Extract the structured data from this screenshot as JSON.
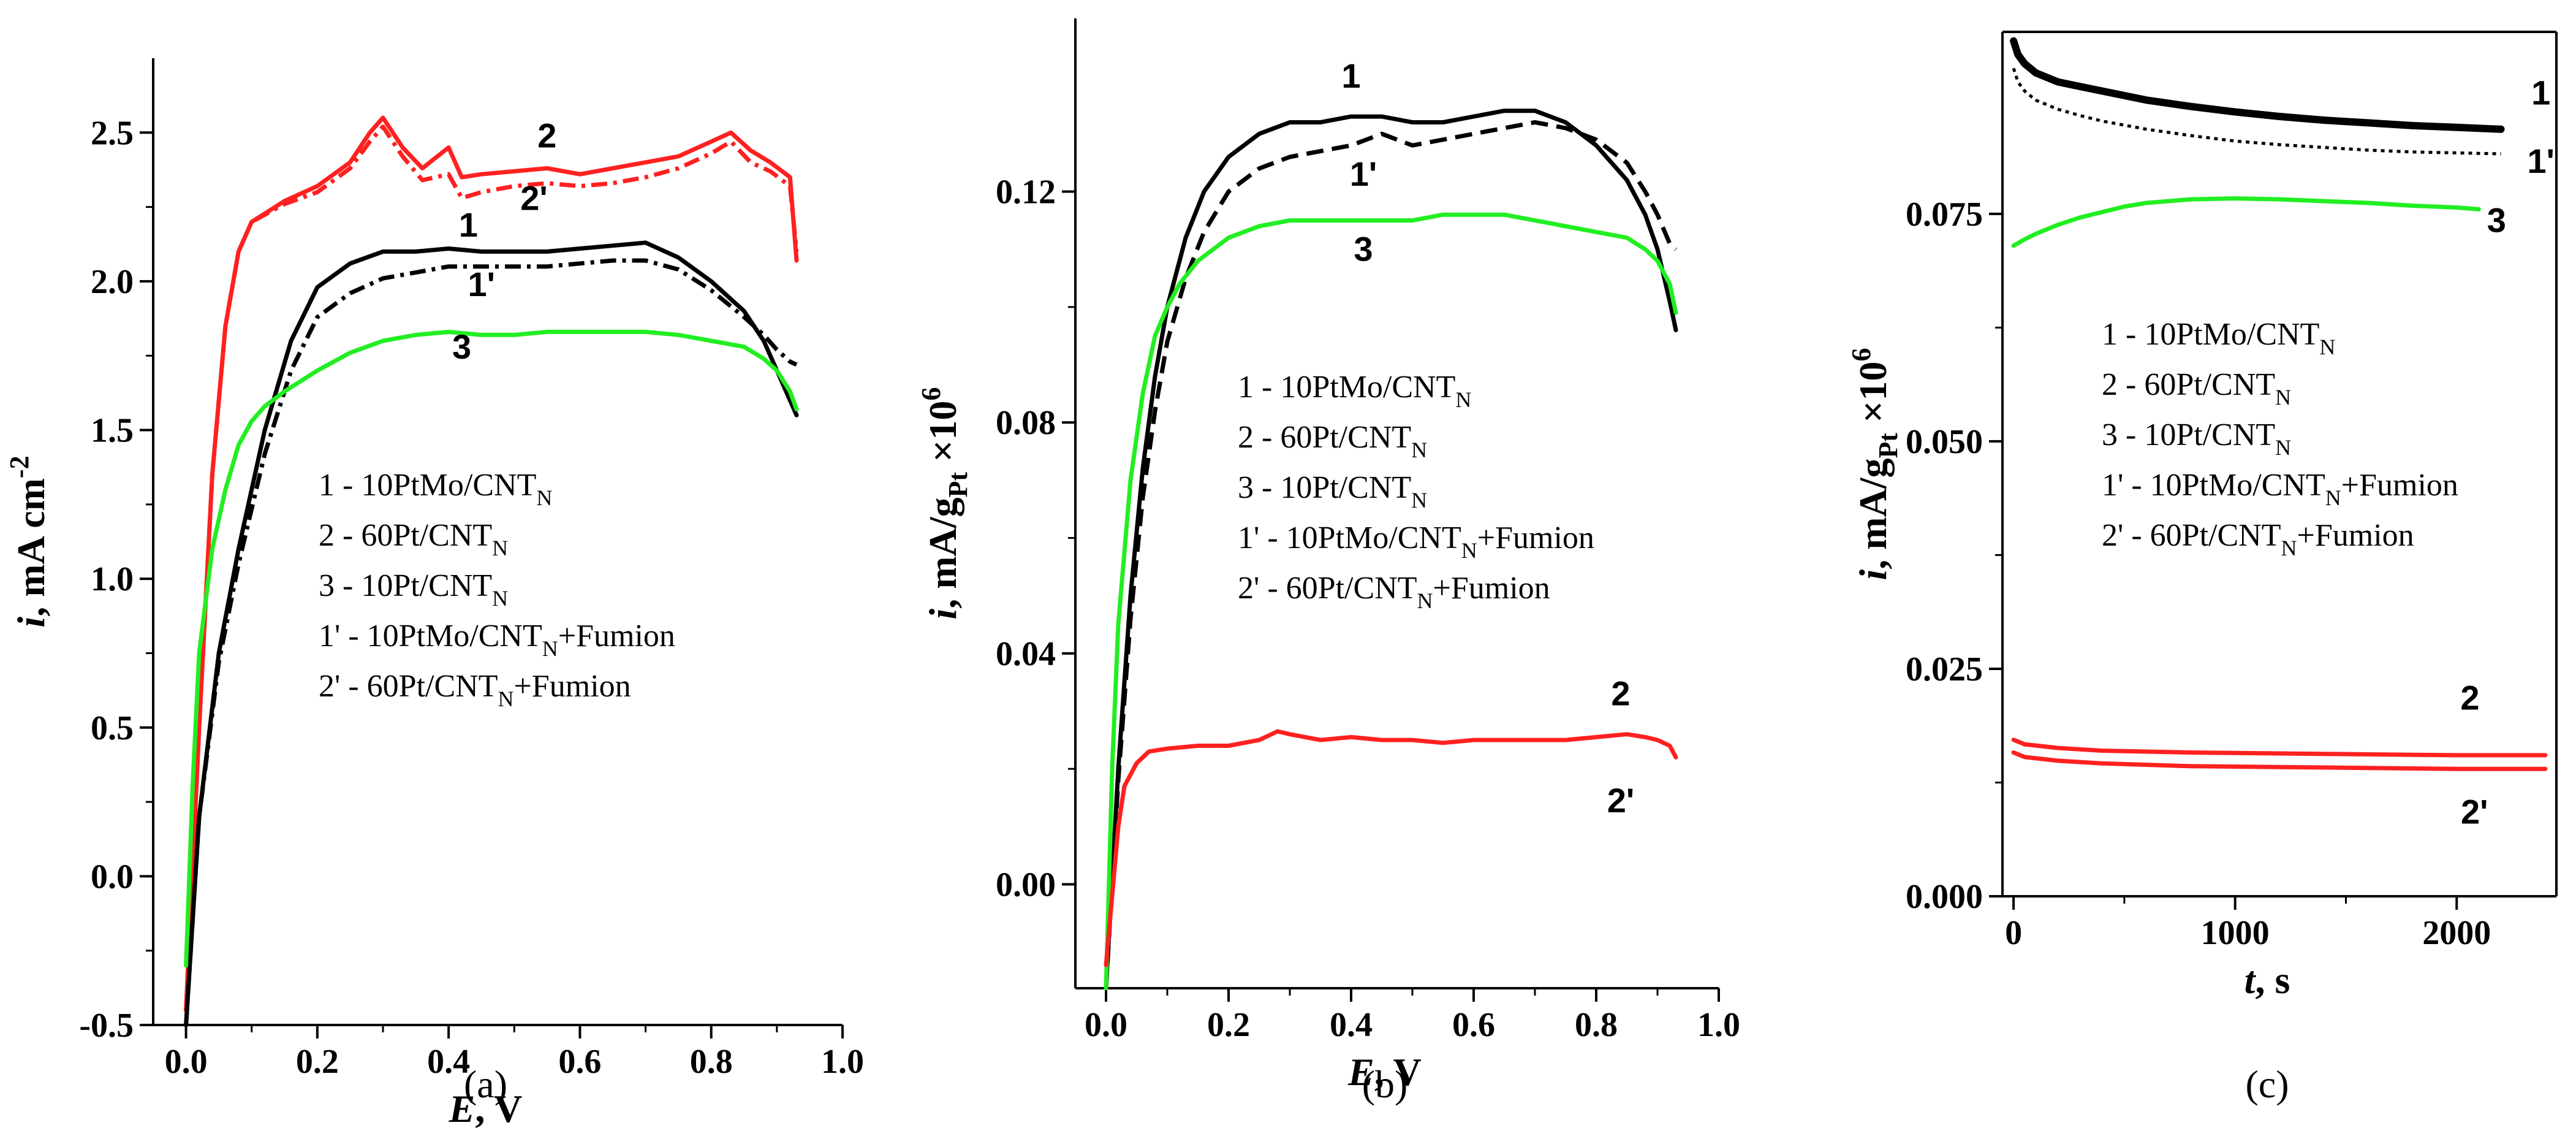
{
  "colors": {
    "series_1": "#000000",
    "series_2": "#ff2020",
    "series_3": "#22ee22"
  },
  "chart_data": [
    {
      "type": "line",
      "panel_label": "(a)",
      "xlabel_var": "E",
      "xlabel_unit": ", V",
      "ylabel_var": "i",
      "ylabel_unit": ", mA cm",
      "ylabel_sup": "-2",
      "xlim": [
        -0.05,
        1.0
      ],
      "ylim": [
        -0.5,
        2.75
      ],
      "x_ticks": [
        0.0,
        0.2,
        0.4,
        0.6,
        0.8,
        1.0
      ],
      "x_tick_labels": [
        "0.0",
        "0.2",
        "0.4",
        "0.6",
        "0.8",
        "1.0"
      ],
      "y_ticks": [
        -0.5,
        0.0,
        0.5,
        1.0,
        1.5,
        2.0,
        2.5
      ],
      "y_tick_labels": [
        "-0.5",
        "0.0",
        "0.5",
        "1.0",
        "1.5",
        "2.0",
        "2.5"
      ],
      "legend": [
        {
          "n": "1 - 10PtMo/CNT",
          "sub": "N",
          "post": ""
        },
        {
          "n": "2 - 60Pt/CNT",
          "sub": "N",
          "post": ""
        },
        {
          "n": "3 - 10Pt/CNT",
          "sub": "N",
          "post": ""
        },
        {
          "n": "1' - 10PtMo/CNT",
          "sub": "N",
          "post": "+Fumion"
        },
        {
          "n": "2' - 60Pt/CNT",
          "sub": "N",
          "post": "+Fumion"
        }
      ],
      "curve_labels": [
        {
          "text": "2",
          "x": 0.55,
          "y": 2.45
        },
        {
          "text": "2'",
          "x": 0.53,
          "y": 2.24
        },
        {
          "text": "1",
          "x": 0.43,
          "y": 2.15
        },
        {
          "text": "1'",
          "x": 0.45,
          "y": 1.95
        },
        {
          "text": "3",
          "x": 0.42,
          "y": 1.74
        }
      ],
      "series": [
        {
          "name": "2",
          "color": "#ff2020",
          "dash": "solid",
          "x": [
            0.0,
            0.02,
            0.04,
            0.06,
            0.08,
            0.1,
            0.15,
            0.2,
            0.25,
            0.28,
            0.3,
            0.33,
            0.36,
            0.4,
            0.42,
            0.45,
            0.5,
            0.55,
            0.6,
            0.65,
            0.7,
            0.75,
            0.8,
            0.83,
            0.86,
            0.89,
            0.92,
            0.93
          ],
          "y": [
            -0.45,
            0.5,
            1.35,
            1.85,
            2.1,
            2.2,
            2.27,
            2.32,
            2.4,
            2.5,
            2.55,
            2.45,
            2.38,
            2.45,
            2.35,
            2.36,
            2.37,
            2.38,
            2.36,
            2.38,
            2.4,
            2.42,
            2.47,
            2.5,
            2.44,
            2.4,
            2.35,
            2.07
          ]
        },
        {
          "name": "2'",
          "color": "#ff2020",
          "dash": "dashdot",
          "x": [
            0.0,
            0.02,
            0.04,
            0.06,
            0.08,
            0.1,
            0.15,
            0.2,
            0.25,
            0.28,
            0.3,
            0.33,
            0.36,
            0.4,
            0.42,
            0.45,
            0.5,
            0.55,
            0.6,
            0.65,
            0.7,
            0.75,
            0.8,
            0.83,
            0.86,
            0.89,
            0.92,
            0.93
          ],
          "y": [
            -0.45,
            0.5,
            1.35,
            1.85,
            2.1,
            2.2,
            2.26,
            2.3,
            2.38,
            2.47,
            2.52,
            2.42,
            2.34,
            2.36,
            2.28,
            2.3,
            2.32,
            2.33,
            2.32,
            2.33,
            2.35,
            2.38,
            2.43,
            2.47,
            2.4,
            2.37,
            2.32,
            2.1
          ]
        },
        {
          "name": "1",
          "color": "#000000",
          "dash": "solid",
          "x": [
            0.0,
            0.02,
            0.05,
            0.08,
            0.12,
            0.16,
            0.2,
            0.25,
            0.3,
            0.35,
            0.4,
            0.45,
            0.5,
            0.55,
            0.6,
            0.65,
            0.7,
            0.75,
            0.8,
            0.85,
            0.88,
            0.9,
            0.92,
            0.93
          ],
          "y": [
            -0.5,
            0.2,
            0.75,
            1.1,
            1.5,
            1.8,
            1.98,
            2.06,
            2.1,
            2.1,
            2.11,
            2.1,
            2.1,
            2.1,
            2.11,
            2.12,
            2.13,
            2.08,
            2.0,
            1.9,
            1.8,
            1.7,
            1.6,
            1.55
          ]
        },
        {
          "name": "1'",
          "color": "#000000",
          "dash": "dashdot",
          "x": [
            0.0,
            0.02,
            0.05,
            0.08,
            0.12,
            0.16,
            0.2,
            0.25,
            0.3,
            0.35,
            0.4,
            0.45,
            0.5,
            0.55,
            0.6,
            0.65,
            0.7,
            0.75,
            0.8,
            0.85,
            0.88,
            0.9,
            0.92,
            0.93
          ],
          "y": [
            -0.5,
            0.2,
            0.72,
            1.05,
            1.42,
            1.7,
            1.88,
            1.96,
            2.01,
            2.03,
            2.05,
            2.05,
            2.05,
            2.05,
            2.06,
            2.07,
            2.07,
            2.04,
            1.97,
            1.88,
            1.82,
            1.77,
            1.73,
            1.72
          ]
        },
        {
          "name": "3",
          "color": "#22ee22",
          "dash": "solid",
          "x": [
            0.0,
            0.01,
            0.02,
            0.04,
            0.06,
            0.08,
            0.1,
            0.12,
            0.15,
            0.2,
            0.25,
            0.3,
            0.35,
            0.4,
            0.45,
            0.5,
            0.55,
            0.6,
            0.65,
            0.7,
            0.75,
            0.8,
            0.85,
            0.88,
            0.9,
            0.92,
            0.93
          ],
          "y": [
            -0.3,
            0.3,
            0.75,
            1.1,
            1.3,
            1.45,
            1.53,
            1.58,
            1.63,
            1.7,
            1.76,
            1.8,
            1.82,
            1.83,
            1.82,
            1.82,
            1.83,
            1.83,
            1.83,
            1.83,
            1.82,
            1.8,
            1.78,
            1.74,
            1.7,
            1.63,
            1.57
          ]
        }
      ]
    },
    {
      "type": "line",
      "panel_label": "(b)",
      "xlabel_var": "E",
      "xlabel_unit": ", V",
      "ylabel_var": "i",
      "ylabel_unit": ", mA/g",
      "ylabel_sub": "Pt",
      "ylabel_post": " ×10",
      "ylabel_sup": "6",
      "xlim": [
        -0.05,
        1.0
      ],
      "ylim": [
        -0.018,
        0.15
      ],
      "x_ticks": [
        0.0,
        0.2,
        0.4,
        0.6,
        0.8,
        1.0
      ],
      "x_tick_labels": [
        "0.0",
        "0.2",
        "0.4",
        "0.6",
        "0.8",
        "1.0"
      ],
      "y_ticks": [
        0.0,
        0.04,
        0.08,
        0.12
      ],
      "y_tick_labels": [
        "0.00",
        "0.04",
        "0.08",
        "0.12"
      ],
      "legend": [
        {
          "n": "1 - 10PtMo/CNT",
          "sub": "N",
          "post": ""
        },
        {
          "n": "2 - 60Pt/CNT",
          "sub": "N",
          "post": ""
        },
        {
          "n": "3 - 10Pt/CNT",
          "sub": "N",
          "post": ""
        },
        {
          "n": "1' - 10PtMo/CNT",
          "sub": "N",
          "post": "+Fumion"
        },
        {
          "n": "2' - 60Pt/CNT",
          "sub": "N",
          "post": "+Fumion"
        }
      ],
      "curve_labels": [
        {
          "text": "1",
          "x": 0.4,
          "y": 0.138
        },
        {
          "text": "1'",
          "x": 0.42,
          "y": 0.121
        },
        {
          "text": "3",
          "x": 0.42,
          "y": 0.108
        },
        {
          "text": "2",
          "x": 0.84,
          "y": 0.031
        },
        {
          "text": "2'",
          "x": 0.84,
          "y": 0.0125
        }
      ],
      "series": [
        {
          "name": "1",
          "color": "#000000",
          "dash": "solid",
          "x": [
            0.0,
            0.02,
            0.04,
            0.06,
            0.08,
            0.1,
            0.13,
            0.16,
            0.2,
            0.25,
            0.3,
            0.35,
            0.4,
            0.45,
            0.5,
            0.55,
            0.6,
            0.65,
            0.7,
            0.75,
            0.8,
            0.85,
            0.88,
            0.9,
            0.92,
            0.93
          ],
          "y": [
            -0.018,
            0.02,
            0.05,
            0.072,
            0.088,
            0.1,
            0.112,
            0.12,
            0.126,
            0.13,
            0.132,
            0.132,
            0.133,
            0.133,
            0.132,
            0.132,
            0.133,
            0.134,
            0.134,
            0.132,
            0.128,
            0.122,
            0.116,
            0.11,
            0.101,
            0.096
          ]
        },
        {
          "name": "1'",
          "color": "#000000",
          "dash": "dashed",
          "x": [
            0.0,
            0.02,
            0.04,
            0.06,
            0.08,
            0.1,
            0.13,
            0.16,
            0.2,
            0.25,
            0.3,
            0.35,
            0.4,
            0.45,
            0.5,
            0.55,
            0.6,
            0.65,
            0.7,
            0.75,
            0.8,
            0.85,
            0.88,
            0.9,
            0.92,
            0.93
          ],
          "y": [
            -0.018,
            0.018,
            0.046,
            0.067,
            0.082,
            0.094,
            0.105,
            0.113,
            0.12,
            0.124,
            0.126,
            0.127,
            0.128,
            0.13,
            0.128,
            0.129,
            0.13,
            0.131,
            0.132,
            0.131,
            0.129,
            0.125,
            0.12,
            0.116,
            0.111,
            0.11
          ]
        },
        {
          "name": "3",
          "color": "#22ee22",
          "dash": "solid",
          "x": [
            0.0,
            0.01,
            0.02,
            0.04,
            0.06,
            0.08,
            0.1,
            0.12,
            0.15,
            0.2,
            0.25,
            0.3,
            0.35,
            0.4,
            0.45,
            0.5,
            0.55,
            0.6,
            0.65,
            0.7,
            0.75,
            0.8,
            0.85,
            0.88,
            0.9,
            0.92,
            0.93
          ],
          "y": [
            -0.018,
            0.02,
            0.045,
            0.07,
            0.085,
            0.095,
            0.1,
            0.104,
            0.108,
            0.112,
            0.114,
            0.115,
            0.115,
            0.115,
            0.115,
            0.115,
            0.116,
            0.116,
            0.116,
            0.115,
            0.114,
            0.113,
            0.112,
            0.11,
            0.108,
            0.104,
            0.099
          ]
        },
        {
          "name": "2",
          "color": "#ff2020",
          "dash": "solid",
          "x": [
            0.0,
            0.01,
            0.02,
            0.03,
            0.05,
            0.07,
            0.1,
            0.15,
            0.2,
            0.25,
            0.28,
            0.3,
            0.35,
            0.4,
            0.45,
            0.5,
            0.55,
            0.6,
            0.65,
            0.7,
            0.75,
            0.8,
            0.85,
            0.88,
            0.9,
            0.92,
            0.93
          ],
          "y": [
            -0.014,
            -0.002,
            0.01,
            0.017,
            0.021,
            0.023,
            0.0235,
            0.024,
            0.024,
            0.025,
            0.0265,
            0.026,
            0.025,
            0.0255,
            0.025,
            0.025,
            0.0245,
            0.025,
            0.025,
            0.025,
            0.025,
            0.0255,
            0.026,
            0.0255,
            0.025,
            0.024,
            0.022
          ]
        }
      ]
    },
    {
      "type": "line",
      "panel_label": "(c)",
      "xlabel_var": "t",
      "xlabel_unit": ", s",
      "ylabel_var": "i",
      "ylabel_unit": ", mA/g",
      "ylabel_sub": "Pt",
      "ylabel_post": " ×10",
      "ylabel_sup": "6",
      "xlim": [
        -50,
        2450
      ],
      "ylim": [
        0.0,
        0.095
      ],
      "x_ticks": [
        0,
        1000,
        2000
      ],
      "x_tick_labels": [
        "0",
        "1000",
        "2000"
      ],
      "y_ticks": [
        0.0,
        0.025,
        0.05,
        0.075
      ],
      "y_tick_labels": [
        "0.000",
        "0.025",
        "0.050",
        "0.075"
      ],
      "legend": [
        {
          "n": "1 - 10PtMo/CNT",
          "sub": "N",
          "post": ""
        },
        {
          "n": "2 - 60Pt/CNT",
          "sub": "N",
          "post": ""
        },
        {
          "n": "3 - 10Pt/CNT",
          "sub": "N",
          "post": ""
        },
        {
          "n": "1' - 10PtMo/CNT",
          "sub": "N",
          "post": "+Fumion"
        },
        {
          "n": "2' - 60Pt/CNT",
          "sub": "N",
          "post": "+Fumion"
        }
      ],
      "curve_labels": [
        {
          "text": "1",
          "x": 2380,
          "y": 0.087
        },
        {
          "text": "1'",
          "x": 2380,
          "y": 0.0795
        },
        {
          "text": "3",
          "x": 2180,
          "y": 0.073
        },
        {
          "text": "2",
          "x": 2060,
          "y": 0.0205
        },
        {
          "text": "2'",
          "x": 2080,
          "y": 0.008
        }
      ],
      "series": [
        {
          "name": "1",
          "color": "#000000",
          "dash": "bold",
          "x": [
            0,
            20,
            50,
            100,
            200,
            300,
            400,
            600,
            800,
            1000,
            1200,
            1400,
            1600,
            1800,
            2000,
            2200
          ],
          "y": [
            0.094,
            0.0925,
            0.0915,
            0.0905,
            0.0895,
            0.089,
            0.0885,
            0.0875,
            0.0868,
            0.0862,
            0.0857,
            0.0853,
            0.085,
            0.0847,
            0.0845,
            0.0843
          ]
        },
        {
          "name": "1'",
          "color": "#000000",
          "dash": "dotted",
          "x": [
            0,
            20,
            50,
            100,
            200,
            300,
            400,
            600,
            800,
            1000,
            1200,
            1400,
            1600,
            1800,
            2000,
            2200
          ],
          "y": [
            0.091,
            0.0895,
            0.0885,
            0.0875,
            0.0865,
            0.0858,
            0.0852,
            0.0843,
            0.0836,
            0.083,
            0.0826,
            0.0823,
            0.082,
            0.0818,
            0.0817,
            0.0816
          ]
        },
        {
          "name": "3",
          "color": "#22ee22",
          "dash": "solid",
          "x": [
            0,
            50,
            100,
            200,
            300,
            400,
            500,
            600,
            800,
            1000,
            1200,
            1400,
            1600,
            1800,
            2000,
            2100
          ],
          "y": [
            0.0715,
            0.0722,
            0.0728,
            0.0738,
            0.0746,
            0.0752,
            0.0758,
            0.0762,
            0.0766,
            0.0767,
            0.0766,
            0.0764,
            0.0762,
            0.0759,
            0.0757,
            0.0755
          ]
        },
        {
          "name": "2",
          "color": "#ff2020",
          "dash": "solid",
          "x": [
            0,
            50,
            200,
            400,
            800,
            1200,
            1600,
            2000,
            2400
          ],
          "y": [
            0.0172,
            0.0167,
            0.0163,
            0.016,
            0.0158,
            0.0157,
            0.0156,
            0.0155,
            0.0155
          ]
        },
        {
          "name": "2'",
          "color": "#ff2020",
          "dash": "solid",
          "x": [
            0,
            50,
            200,
            400,
            800,
            1200,
            1600,
            2000,
            2400
          ],
          "y": [
            0.0158,
            0.0153,
            0.0149,
            0.0146,
            0.0143,
            0.0142,
            0.0141,
            0.014,
            0.014
          ]
        }
      ]
    }
  ]
}
